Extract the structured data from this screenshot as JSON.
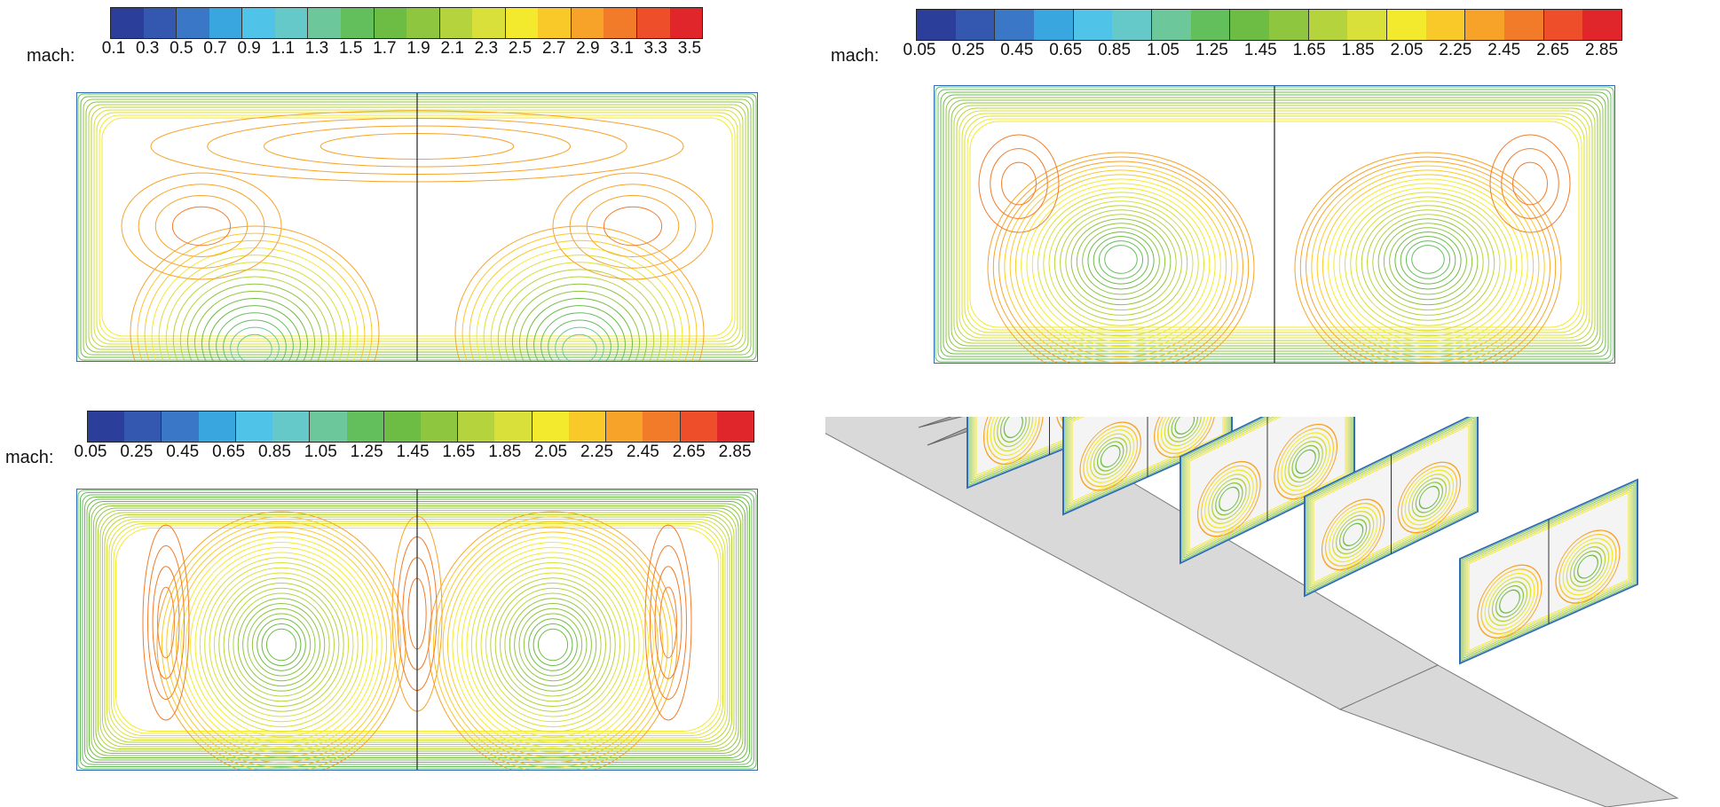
{
  "panels": [
    {
      "id": "top-left",
      "colorbar": {
        "label": "mach:",
        "ticks": [
          "0.1",
          "0.3",
          "0.5",
          "0.7",
          "0.9",
          "1.1",
          "1.3",
          "1.5",
          "1.7",
          "1.9",
          "2.1",
          "2.3",
          "2.5",
          "2.7",
          "2.9",
          "3.1",
          "3.3",
          "3.5"
        ]
      }
    },
    {
      "id": "top-right",
      "colorbar": {
        "label": "mach:",
        "ticks": [
          "0.05",
          "0.25",
          "0.45",
          "0.65",
          "0.85",
          "1.05",
          "1.25",
          "1.45",
          "1.65",
          "1.85",
          "2.05",
          "2.25",
          "2.45",
          "2.65",
          "2.85"
        ]
      }
    },
    {
      "id": "bottom-left",
      "colorbar": {
        "label": "mach:",
        "ticks": [
          "0.05",
          "0.25",
          "0.45",
          "0.65",
          "0.85",
          "1.05",
          "1.25",
          "1.45",
          "1.65",
          "1.85",
          "2.05",
          "2.25",
          "2.45",
          "2.65",
          "2.85"
        ]
      }
    }
  ],
  "colors": {
    "scale": [
      "#2b3f9a",
      "#3457b0",
      "#3a78c7",
      "#3aa6e0",
      "#4fc3e8",
      "#66c9c9",
      "#6cc79a",
      "#63bf5c",
      "#6dbd45",
      "#8fc640",
      "#b5d33d",
      "#d9e03a",
      "#f3ea2e",
      "#f9c92a",
      "#f7a32a",
      "#f27b2a",
      "#ee4f2a",
      "#e0262a"
    ],
    "frame": "#2f6db5",
    "divider": "#222222",
    "floor": "#d9d9d9"
  },
  "perspective": {
    "slices": 5,
    "description_hidden": true
  }
}
